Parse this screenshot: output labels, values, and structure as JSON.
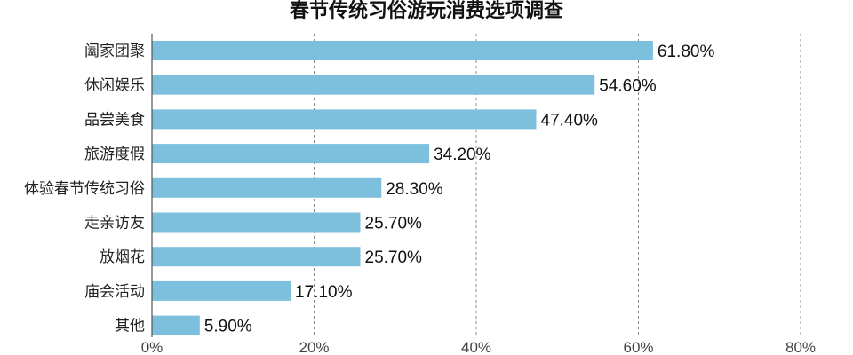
{
  "chart_data": {
    "type": "bar",
    "orientation": "horizontal",
    "title": "春节传统习俗游玩消费选项调查",
    "categories": [
      "阖家团聚",
      "休闲娱乐",
      "品尝美食",
      "旅游度假",
      "体验春节传统习俗",
      "走亲访友",
      "放烟花",
      "庙会活动",
      "其他"
    ],
    "values": [
      61.8,
      54.6,
      47.4,
      34.2,
      28.3,
      25.7,
      25.7,
      17.1,
      5.9
    ],
    "value_labels": [
      "61.80%",
      "54.60%",
      "47.40%",
      "34.20%",
      "28.30%",
      "25.70%",
      "25.70%",
      "17.10%",
      "5.90%"
    ],
    "xlim": [
      0,
      80
    ],
    "x_ticks": [
      0,
      20,
      40,
      60,
      80
    ],
    "x_tick_labels": [
      "0%",
      "20%",
      "40%",
      "60%",
      "80%"
    ],
    "xlabel": "",
    "ylabel": "",
    "grid": "vertical dashed",
    "bar_color": "#7cc0de"
  }
}
